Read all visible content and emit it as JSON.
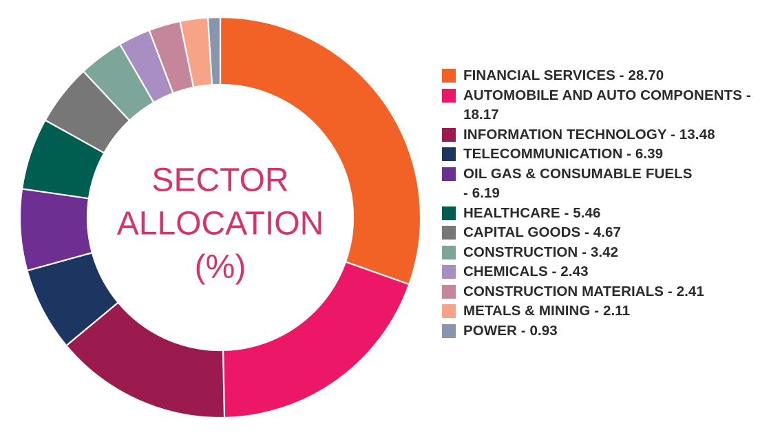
{
  "chart_data": {
    "type": "pie",
    "title": "SECTOR ALLOCATION (%)",
    "title_lines": [
      "SECTOR",
      "ALLOCATION",
      "(%)"
    ],
    "legend": {
      "placement": "right"
    },
    "slices": [
      {
        "label": "FINANCIAL SERVICES",
        "value": 28.7,
        "value_text": "28.70",
        "legend_lines": [
          "FINANCIAL SERVICES - 28.70"
        ],
        "color": "#f26125"
      },
      {
        "label": "AUTOMOBILE AND AUTO COMPONENTS",
        "value": 18.17,
        "value_text": "18.17",
        "legend_lines": [
          "AUTOMOBILE AND AUTO COMPONENTS -",
          "18.17"
        ],
        "color": "#ec1766"
      },
      {
        "label": "INFORMATION TECHNOLOGY",
        "value": 13.48,
        "value_text": "13.48",
        "legend_lines": [
          "INFORMATION TECHNOLOGY - 13.48"
        ],
        "color": "#9b1b4e"
      },
      {
        "label": "TELECOMMUNICATION",
        "value": 6.39,
        "value_text": "6.39",
        "legend_lines": [
          "TELECOMMUNICATION - 6.39"
        ],
        "color": "#1c3661"
      },
      {
        "label": "OIL GAS & CONSUMABLE FUELS",
        "value": 6.19,
        "value_text": "6.19",
        "legend_lines": [
          "OIL GAS & CONSUMABLE FUELS",
          "- 6.19"
        ],
        "color": "#6e2f92"
      },
      {
        "label": "HEALTHCARE",
        "value": 5.46,
        "value_text": "5.46",
        "legend_lines": [
          "HEALTHCARE - 5.46"
        ],
        "color": "#005e50"
      },
      {
        "label": "CAPITAL GOODS",
        "value": 4.67,
        "value_text": "4.67",
        "legend_lines": [
          "CAPITAL GOODS - 4.67"
        ],
        "color": "#777777"
      },
      {
        "label": "CONSTRUCTION",
        "value": 3.42,
        "value_text": "3.42",
        "legend_lines": [
          "CONSTRUCTION - 3.42"
        ],
        "color": "#7ea59a"
      },
      {
        "label": "CHEMICALS",
        "value": 2.43,
        "value_text": "2.43",
        "legend_lines": [
          "CHEMICALS - 2.43"
        ],
        "color": "#a98ec3"
      },
      {
        "label": "CONSTRUCTION MATERIALS",
        "value": 2.41,
        "value_text": "2.41",
        "legend_lines": [
          "CONSTRUCTION MATERIALS - 2.41"
        ],
        "color": "#c5869b"
      },
      {
        "label": "METALS & MINING",
        "value": 2.11,
        "value_text": "2.11",
        "legend_lines": [
          "METALS & MINING - 2.11"
        ],
        "color": "#f6a387"
      },
      {
        "label": "POWER",
        "value": 0.93,
        "value_text": "0.93",
        "legend_lines": [
          "POWER - 0.93"
        ],
        "color": "#8895ad"
      }
    ]
  }
}
